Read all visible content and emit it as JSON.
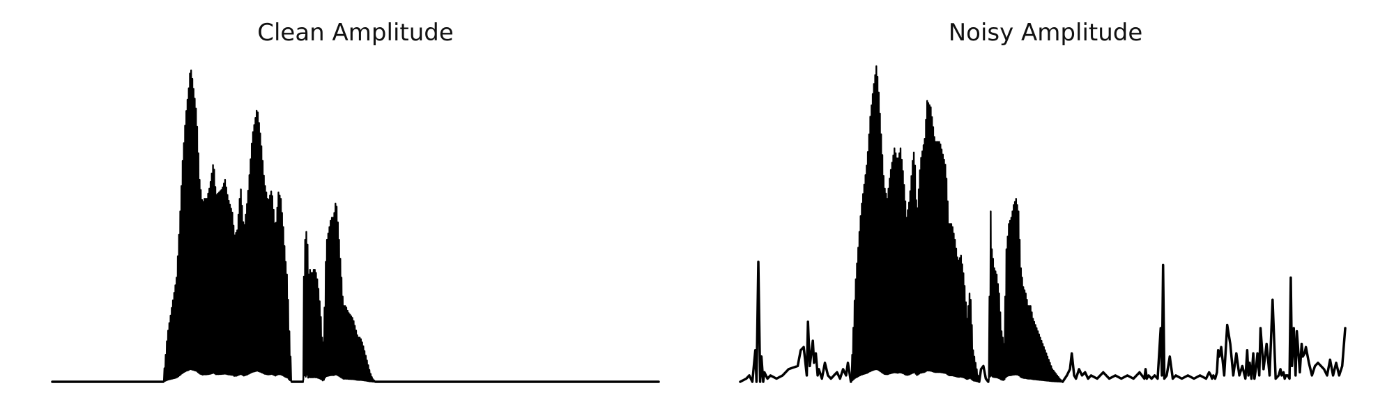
{
  "chart_data": [
    {
      "type": "line",
      "title": "Clean Amplitude",
      "xlabel": "",
      "ylabel": "",
      "xlim": [
        0,
        1000
      ],
      "ylim": [
        0,
        1
      ],
      "axes_visible": false,
      "grid": false,
      "legend": "none",
      "line_color": "#000000",
      "x_step": 1,
      "segments": [
        {
          "x_start": 0,
          "x_end": 183,
          "values": [
            0,
            0
          ],
          "fill": false
        },
        {
          "x_start": 183,
          "x_end": 395,
          "fill": true,
          "envelope_x": [
            183,
            190,
            200,
            205,
            210,
            215,
            220,
            225,
            228,
            231,
            238,
            243,
            248,
            250,
            255,
            260,
            266,
            270,
            275,
            280,
            285,
            290,
            298,
            300,
            305,
            309,
            311,
            316,
            322,
            330,
            338,
            344,
            350,
            356,
            362,
            368,
            373,
            377,
            381,
            384,
            388,
            390,
            393,
            395
          ],
          "envelope_y": [
            0,
            0.15,
            0.27,
            0.33,
            0.5,
            0.7,
            0.84,
            0.93,
            1.0,
            0.96,
            0.85,
            0.64,
            0.56,
            0.58,
            0.58,
            0.62,
            0.7,
            0.59,
            0.6,
            0.61,
            0.64,
            0.58,
            0.53,
            0.46,
            0.48,
            0.58,
            0.61,
            0.48,
            0.58,
            0.78,
            0.87,
            0.77,
            0.63,
            0.57,
            0.61,
            0.48,
            0.6,
            0.58,
            0.49,
            0.4,
            0.32,
            0.2,
            0.08,
            0
          ]
        },
        {
          "x_start": 395,
          "x_end": 413,
          "values": [
            0,
            0
          ],
          "fill": false
        },
        {
          "x_start": 413,
          "x_end": 533,
          "fill": true,
          "envelope_x": [
            413,
            416,
            418,
            420,
            422,
            424,
            428,
            432,
            436,
            440,
            444,
            446,
            448,
            450,
            452,
            456,
            460,
            464,
            468,
            472,
            476,
            480,
            484,
            488,
            492,
            496,
            500,
            504,
            508,
            512,
            516,
            520,
            524,
            528,
            533
          ],
          "envelope_y": [
            0,
            0.5,
            0.4,
            0.55,
            0.32,
            0.36,
            0.34,
            0.36,
            0.34,
            0.28,
            0.18,
            0.1,
            0.15,
            0.32,
            0.44,
            0.48,
            0.52,
            0.52,
            0.58,
            0.48,
            0.36,
            0.24,
            0.24,
            0.22,
            0.21,
            0.2,
            0.17,
            0.14,
            0.14,
            0.12,
            0.09,
            0.06,
            0.03,
            0.01,
            0
          ]
        },
        {
          "x_start": 533,
          "x_end": 1000,
          "values": [
            0,
            0
          ],
          "fill": false
        }
      ]
    },
    {
      "type": "line",
      "title": "Noisy Amplitude",
      "xlabel": "",
      "ylabel": "",
      "xlim": [
        0,
        1000
      ],
      "ylim": [
        0,
        1
      ],
      "axes_visible": false,
      "grid": false,
      "legend": "none",
      "line_color": "#000000",
      "x_step": 1,
      "segments": [
        {
          "x_start": 0,
          "x_end": 183,
          "fill": false,
          "points_x": [
            0,
            10,
            15,
            20,
            25,
            27,
            30,
            33,
            35,
            38,
            40,
            45,
            50,
            60,
            70,
            80,
            95,
            100,
            105,
            110,
            112,
            115,
            120,
            122,
            125,
            128,
            130,
            135,
            140,
            145,
            150,
            155,
            160,
            165,
            170,
            175,
            178,
            183
          ],
          "points_y": [
            0.0,
            0.01,
            0.02,
            0.0,
            0.1,
            0.0,
            0.38,
            0.0,
            0.08,
            0.0,
            0.03,
            0.01,
            0.02,
            0.01,
            0.02,
            0.04,
            0.05,
            0.1,
            0.11,
            0.02,
            0.19,
            0.05,
            0.13,
            0.06,
            0.09,
            0.02,
            0.04,
            0.01,
            0.06,
            0.02,
            0.01,
            0.02,
            0.03,
            0.01,
            0.04,
            0.02,
            0.06,
            0.0
          ]
        },
        {
          "x_start": 183,
          "x_end": 395,
          "fill": true,
          "envelope_x": [
            183,
            190,
            200,
            210,
            215,
            220,
            225,
            228,
            231,
            238,
            243,
            248,
            255,
            260,
            265,
            270,
            275,
            280,
            285,
            288,
            292,
            298,
            305,
            309,
            315,
            322,
            330,
            335,
            340,
            345,
            350,
            355,
            360,
            365,
            370,
            375,
            380,
            385,
            390,
            393,
            395
          ],
          "envelope_y": [
            0,
            0.3,
            0.55,
            0.7,
            0.84,
            0.93,
            1.0,
            0.95,
            0.85,
            0.62,
            0.58,
            0.66,
            0.74,
            0.7,
            0.74,
            0.65,
            0.52,
            0.58,
            0.7,
            0.74,
            0.52,
            0.7,
            0.77,
            0.89,
            0.87,
            0.76,
            0.76,
            0.72,
            0.68,
            0.5,
            0.5,
            0.45,
            0.38,
            0.4,
            0.33,
            0.2,
            0.3,
            0.1,
            0.05,
            0.02,
            0
          ]
        },
        {
          "x_start": 395,
          "x_end": 410,
          "fill": false,
          "points_x": [
            395,
            398,
            402,
            406,
            410
          ],
          "points_y": [
            0.0,
            0.04,
            0.05,
            0.01,
            0.0
          ]
        },
        {
          "x_start": 410,
          "x_end": 533,
          "fill": true,
          "envelope_x": [
            410,
            414,
            416,
            420,
            424,
            428,
            432,
            436,
            440,
            444,
            448,
            452,
            456,
            460,
            464,
            468,
            472,
            476,
            480,
            484,
            488,
            492,
            496,
            500,
            504,
            508,
            512,
            516,
            520,
            524,
            528,
            533
          ],
          "envelope_y": [
            0,
            0.54,
            0.42,
            0.36,
            0.34,
            0.28,
            0.16,
            0.12,
            0.42,
            0.5,
            0.52,
            0.56,
            0.58,
            0.54,
            0.36,
            0.3,
            0.28,
            0.24,
            0.24,
            0.2,
            0.18,
            0.16,
            0.14,
            0.12,
            0.1,
            0.08,
            0.06,
            0.04,
            0.03,
            0.02,
            0.01,
            0
          ]
        },
        {
          "x_start": 533,
          "x_end": 1000,
          "fill": false,
          "points_x": [
            533,
            540,
            545,
            548,
            552,
            555,
            560,
            565,
            570,
            575,
            580,
            590,
            600,
            610,
            620,
            630,
            640,
            650,
            660,
            668,
            670,
            672,
            675,
            680,
            685,
            690,
            695,
            697,
            699,
            701,
            705,
            710,
            715,
            720,
            730,
            740,
            750,
            760,
            770,
            775,
            778,
            780,
            782,
            785,
            788,
            790,
            792,
            795,
            800,
            805,
            810,
            815,
            820,
            825,
            830,
            835,
            838,
            840,
            842,
            845,
            848,
            850,
            853,
            855,
            858,
            860,
            865,
            870,
            875,
            880,
            885,
            890,
            893,
            895,
            898,
            900,
            902,
            905,
            908,
            910,
            912,
            915,
            918,
            920,
            925,
            928,
            930,
            933,
            935,
            940,
            945,
            950,
            955,
            960,
            965,
            970,
            975,
            980,
            985,
            990,
            995,
            1000
          ],
          "points_y": [
            0.0,
            0.02,
            0.04,
            0.09,
            0.02,
            0.01,
            0.04,
            0.02,
            0.03,
            0.01,
            0.02,
            0.01,
            0.03,
            0.01,
            0.02,
            0.01,
            0.02,
            0.01,
            0.03,
            0.01,
            0.04,
            0.01,
            0.02,
            0.01,
            0.02,
            0.01,
            0.17,
            0.02,
            0.37,
            0.01,
            0.02,
            0.08,
            0.01,
            0.02,
            0.01,
            0.02,
            0.01,
            0.02,
            0.01,
            0.03,
            0.02,
            0.01,
            0.02,
            0.01,
            0.03,
            0.1,
            0.08,
            0.11,
            0.02,
            0.18,
            0.12,
            0.02,
            0.09,
            0.02,
            0.05,
            0.01,
            0.1,
            0.02,
            0.06,
            0.01,
            0.09,
            0.01,
            0.05,
            0.09,
            0.02,
            0.17,
            0.04,
            0.12,
            0.02,
            0.26,
            0.01,
            0.02,
            0.04,
            0.02,
            0.03,
            0.01,
            0.02,
            0.02,
            0.01,
            0.33,
            0.05,
            0.17,
            0.02,
            0.16,
            0.03,
            0.12,
            0.08,
            0.09,
            0.11,
            0.06,
            0.02,
            0.05,
            0.06,
            0.05,
            0.04,
            0.02,
            0.07,
            0.02,
            0.06,
            0.02,
            0.05,
            0.17
          ]
        }
      ]
    }
  ]
}
